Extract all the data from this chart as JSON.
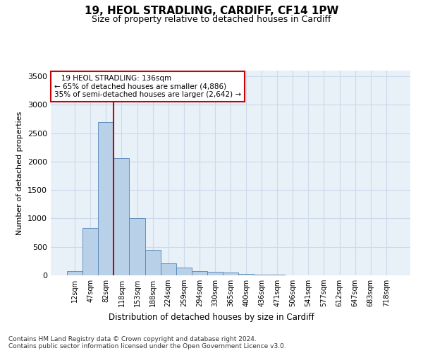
{
  "title1": "19, HEOL STRADLING, CARDIFF, CF14 1PW",
  "title2": "Size of property relative to detached houses in Cardiff",
  "xlabel": "Distribution of detached houses by size in Cardiff",
  "ylabel": "Number of detached properties",
  "footnote": "Contains HM Land Registry data © Crown copyright and database right 2024.\nContains public sector information licensed under the Open Government Licence v3.0.",
  "annotation_line1": "   19 HEOL STRADLING: 136sqm",
  "annotation_line2": "← 65% of detached houses are smaller (4,886)",
  "annotation_line3": "35% of semi-detached houses are larger (2,642) →",
  "bar_color": "#b8d0e8",
  "bar_edge_color": "#5585b5",
  "grid_color": "#ccdaeb",
  "background_color": "#e8f0f8",
  "red_line_color": "#cc0000",
  "categories": [
    "12sqm",
    "47sqm",
    "82sqm",
    "118sqm",
    "153sqm",
    "188sqm",
    "224sqm",
    "259sqm",
    "294sqm",
    "330sqm",
    "365sqm",
    "400sqm",
    "436sqm",
    "471sqm",
    "506sqm",
    "541sqm",
    "577sqm",
    "612sqm",
    "647sqm",
    "683sqm",
    "718sqm"
  ],
  "values": [
    75,
    830,
    2700,
    2060,
    1000,
    450,
    210,
    135,
    80,
    60,
    50,
    20,
    15,
    8,
    5,
    3,
    2,
    1,
    0,
    0,
    0
  ],
  "ylim": [
    0,
    3600
  ],
  "yticks": [
    0,
    500,
    1000,
    1500,
    2000,
    2500,
    3000,
    3500
  ],
  "red_line_x": 2.5
}
